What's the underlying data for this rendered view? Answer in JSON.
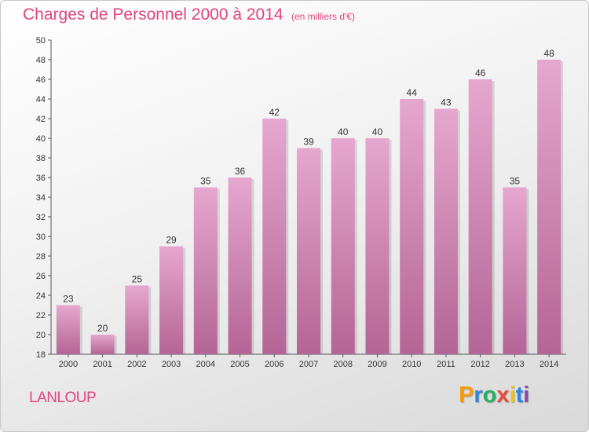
{
  "header": {
    "title": "Charges de Personnel 2000 à 2014",
    "subtitle": "(en milliers d'€)"
  },
  "footer": {
    "commune": "LANLOUP",
    "logo_letters": [
      {
        "char": "P",
        "color": "#f39c12"
      },
      {
        "char": "r",
        "color": "#2e86de"
      },
      {
        "char": "o",
        "color": "#27ae60"
      },
      {
        "char": "x",
        "color": "#e74c3c"
      },
      {
        "char": "i",
        "color": "#f1c40f"
      },
      {
        "char": "t",
        "color": "#2e86de"
      },
      {
        "char": "i",
        "color": "#8e44ad"
      }
    ]
  },
  "colors": {
    "accent": "#e0457f",
    "bar_top": "#e6a7cf",
    "bar_bottom": "#b46595"
  },
  "chart_data": {
    "type": "bar",
    "title": "Charges de Personnel 2000 à 2014",
    "subtitle": "(en milliers d'€)",
    "categories": [
      "2000",
      "2001",
      "2002",
      "2003",
      "2004",
      "2005",
      "2006",
      "2007",
      "2008",
      "2009",
      "2010",
      "2011",
      "2012",
      "2013",
      "2014"
    ],
    "values": [
      23,
      20,
      25,
      29,
      35,
      36,
      42,
      39,
      40,
      40,
      44,
      43,
      46,
      35,
      48
    ],
    "ylim": [
      18,
      50
    ],
    "yticks": [
      18,
      20,
      22,
      24,
      26,
      28,
      30,
      32,
      34,
      36,
      38,
      40,
      42,
      44,
      46,
      48,
      50
    ],
    "grid": false,
    "legend": "none"
  }
}
